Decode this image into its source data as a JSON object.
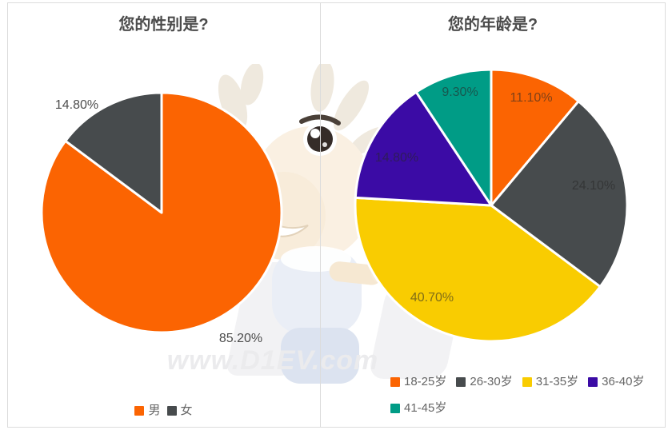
{
  "ui_colors": {
    "frame_border": "#DCDCDC",
    "title_text": "#4C4C4C",
    "outside_label_text": "#4D4D4D",
    "legend_text": "#666666",
    "watermark_text_color": "#EBEBED"
  },
  "watermark": {
    "text": "www.D1EV.com",
    "mascot_icon": "deer-mascot"
  },
  "chart_data": [
    {
      "type": "pie",
      "title": "您的性别是?",
      "labels": [
        "男",
        "女"
      ],
      "values": [
        85.2,
        14.8
      ],
      "value_labels": [
        "85.20%",
        "14.80%"
      ],
      "colors": [
        "#FB6402",
        "#474B4D"
      ],
      "start_angle": "12-oclock",
      "direction": "clockwise",
      "label_position": "outside",
      "legend_position": "bottom-center"
    },
    {
      "type": "pie",
      "title": "您的年龄是?",
      "labels": [
        "18-25岁",
        "26-30岁",
        "31-35岁",
        "36-40岁",
        "41-45岁"
      ],
      "values": [
        11.1,
        24.1,
        40.7,
        14.8,
        9.3
      ],
      "value_labels": [
        "11.10%",
        "24.10%",
        "40.70%",
        "14.80%",
        "9.30%"
      ],
      "colors": [
        "#FB6402",
        "#474B4D",
        "#F9CC01",
        "#3B0BA5",
        "#009C86"
      ],
      "start_angle": "12-oclock",
      "direction": "clockwise",
      "label_position": "inside",
      "legend_position": "bottom-left"
    }
  ]
}
